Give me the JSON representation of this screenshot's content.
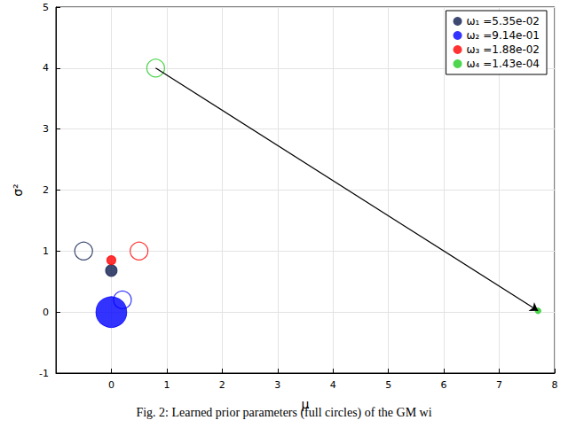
{
  "chart_data": {
    "type": "scatter",
    "xlabel": "μ",
    "ylabel": "σ²",
    "caption": "Fig. 2: Learned prior parameters (full circles) of the GM wi",
    "xlim": [
      -1,
      8
    ],
    "xticks": [
      0,
      1,
      2,
      3,
      4,
      5,
      6,
      7,
      8
    ],
    "ylim": [
      -1,
      5
    ],
    "yticks": [
      -1,
      0,
      1,
      2,
      3,
      4,
      5
    ],
    "grid": true,
    "legend": "upper right",
    "marker": "circle",
    "series": [
      {
        "name": "ω₁ =5.35e-02",
        "weight": 0.0535,
        "color": "#0d1b4c",
        "learned": {
          "x": 0.0,
          "y": 0.68
        },
        "initial": {
          "x": -0.5,
          "y": 1.0
        }
      },
      {
        "name": "ω₂ =9.14e-01",
        "weight": 0.914,
        "color": "#0000ff",
        "learned": {
          "x": 0.0,
          "y": 0.0
        },
        "initial": {
          "x": 0.2,
          "y": 0.2
        }
      },
      {
        "name": "ω₃ =1.88e-02",
        "weight": 0.0188,
        "color": "#ff0000",
        "learned": {
          "x": 0.0,
          "y": 0.85
        },
        "initial": {
          "x": 0.5,
          "y": 1.0
        }
      },
      {
        "name": "ω₄ =1.43e-04",
        "weight": 0.000143,
        "color": "#22cc22",
        "learned": {
          "x": 7.7,
          "y": 0.02
        },
        "initial": {
          "x": 0.8,
          "y": 4.0
        }
      }
    ]
  }
}
